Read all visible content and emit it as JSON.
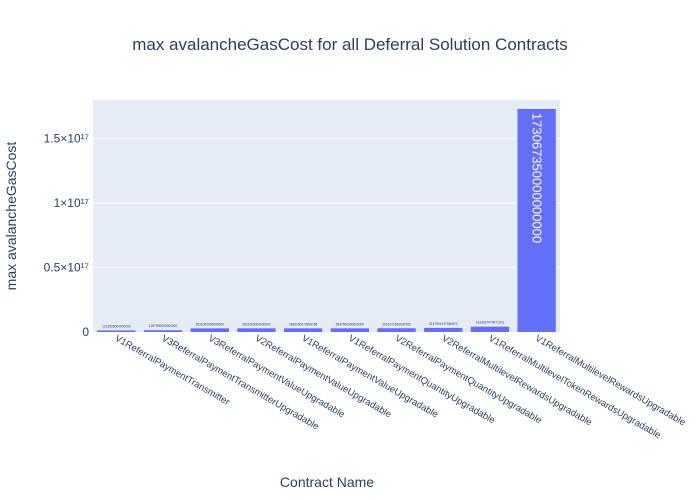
{
  "chart_data": {
    "type": "bar",
    "title": "max avalancheGasCost for all Deferral Solution Contracts",
    "xlabel": "Contract Name",
    "ylabel": "max avalancheGasCost",
    "ylim": [
      0,
      180000000000000000
    ],
    "yticks": [
      {
        "value": 0,
        "label": "0"
      },
      {
        "value": 50000000000000000,
        "label": "0.5×10¹⁷"
      },
      {
        "value": 100000000000000000,
        "label": "1×10¹⁷"
      },
      {
        "value": 150000000000000000,
        "label": "1.5×10¹⁷"
      }
    ],
    "grid": true,
    "bar_color": "#636efa",
    "plot_bg": "#e5ecf6",
    "categories": [
      "V1ReferralPaymentTransmitter",
      "V3ReferralPaymentTransmitterUpgradable",
      "V3ReferralPaymentValueUpgradable",
      "V2ReferralPaymentValueUpgradable",
      "V1ReferralPaymentValueUpgradable",
      "V1ReferralPaymentQuantityUpgradable",
      "V2ReferralPaymentQuantityUpgradable",
      "V2ReferralMultilevelRewardsUpgradable",
      "V1ReferralMultilevelTokenRewardsUpgradable",
      "V1ReferralMultilevelRewardsUpgradable"
    ],
    "values": [
      1213925000000000,
      1397900000000000,
      2831050000000000,
      2831000000000000,
      2828250273996786,
      2847500000000000,
      2901071650640785,
      3147904747980879,
      4133327479071201,
      173067350000000000
    ],
    "data_labels": [
      "1213925000000000",
      "1397900000000000",
      "2831050000000000",
      "2831000000000000",
      "2828250273996786",
      "2847500000000000",
      "2901071650640785",
      "3147904747980879",
      "4133327479071201",
      "173067350000000000"
    ]
  }
}
